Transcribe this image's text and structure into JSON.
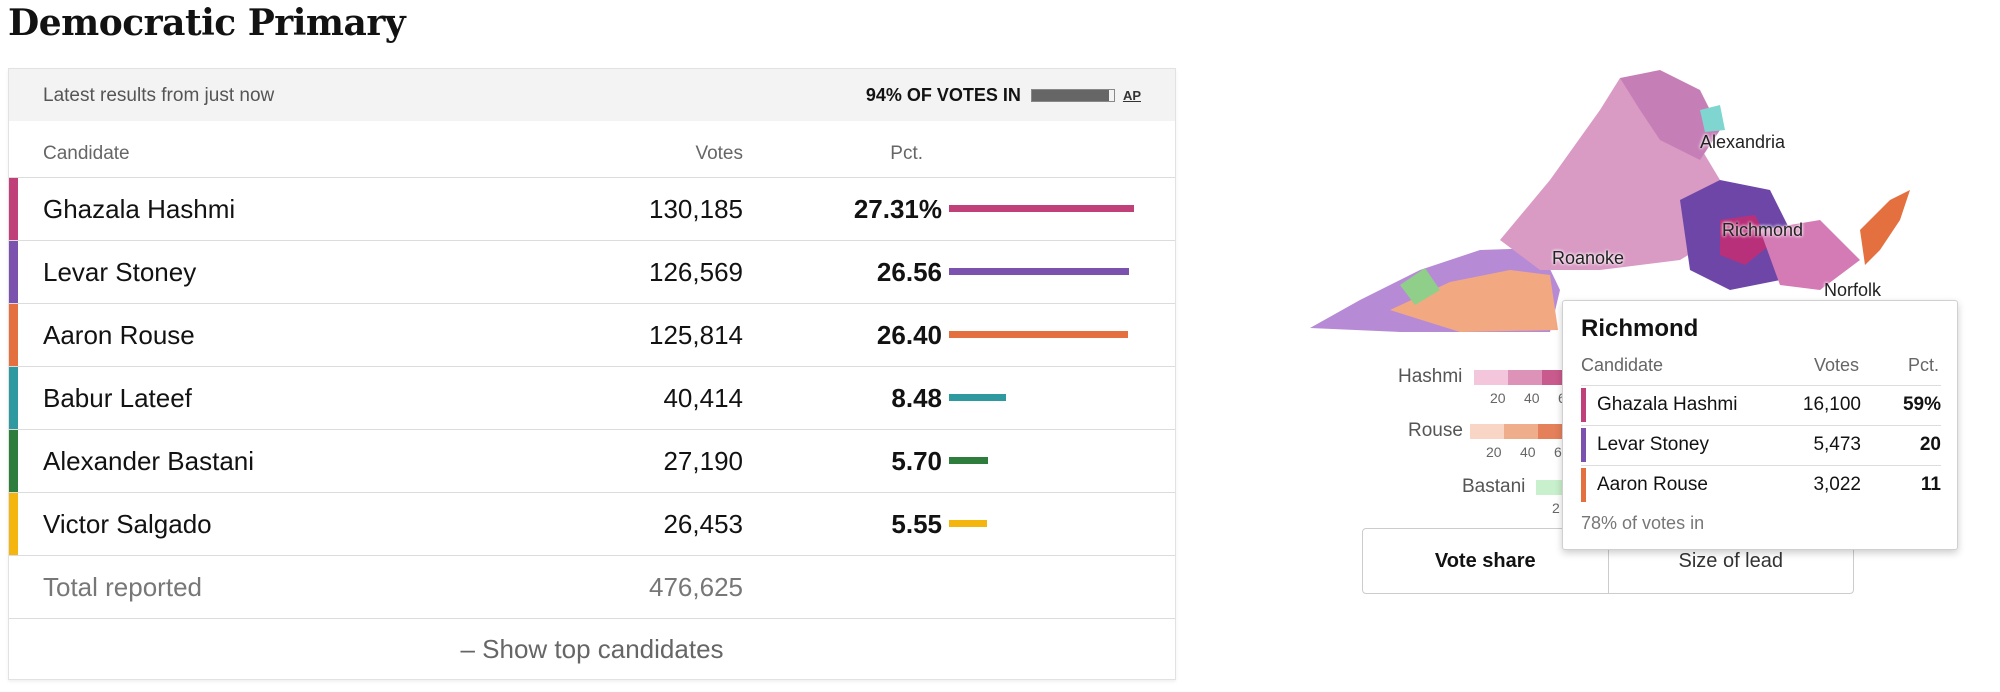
{
  "title": "Democratic Primary",
  "header": {
    "latest": "Latest results from just now",
    "votes_in": "94% OF VOTES IN",
    "progress": 0.94,
    "source": "AP"
  },
  "columns": {
    "candidate": "Candidate",
    "votes": "Votes",
    "pct": "Pct."
  },
  "candidates": [
    {
      "name": "Ghazala Hashmi",
      "votes": "130,185",
      "pct": "27.31%",
      "share": 27.31,
      "color": "#c0417a"
    },
    {
      "name": "Levar Stoney",
      "votes": "126,569",
      "pct": "26.56",
      "share": 26.56,
      "color": "#7b52ae"
    },
    {
      "name": "Aaron Rouse",
      "votes": "125,814",
      "pct": "26.40",
      "share": 26.4,
      "color": "#e4703f"
    },
    {
      "name": "Babur Lateef",
      "votes": "40,414",
      "pct": "8.48",
      "share": 8.48,
      "color": "#2e9aa0"
    },
    {
      "name": "Alexander Bastani",
      "votes": "27,190",
      "pct": "5.70",
      "share": 5.7,
      "color": "#2f7d3c"
    },
    {
      "name": "Victor Salgado",
      "votes": "26,453",
      "pct": "5.55",
      "share": 5.55,
      "color": "#f5b50f"
    }
  ],
  "total": {
    "label": "Total reported",
    "votes": "476,625"
  },
  "show_top": "– Show top candidates",
  "map": {
    "labels": [
      "Alexandria",
      "Richmond",
      "Roanoke",
      "Norfolk"
    ],
    "legend": [
      {
        "name": "Hashmi",
        "ticks": [
          "20",
          "40",
          "6"
        ],
        "colors": [
          "#f3c6dc",
          "#dd93b7",
          "#c95a8d",
          "#b03070"
        ]
      },
      {
        "name": "Rouse",
        "ticks": [
          "20",
          "40",
          "6"
        ],
        "colors": [
          "#f8d5c4",
          "#f0ad8c",
          "#e4805a",
          "#d65a2e"
        ]
      },
      {
        "name": "Bastani",
        "ticks": [
          "2"
        ],
        "colors": [
          "#c8f0cc",
          "#9bd9a2"
        ]
      }
    ]
  },
  "toggle": {
    "vote_share": "Vote share",
    "size_of_lead": "Size of lead"
  },
  "tooltip": {
    "title": "Richmond",
    "col_candidate": "Candidate",
    "col_votes": "Votes",
    "col_pct": "Pct.",
    "rows": [
      {
        "name": "Ghazala Hashmi",
        "votes": "16,100",
        "pct": "59%",
        "color": "#c0417a"
      },
      {
        "name": "Levar Stoney",
        "votes": "5,473",
        "pct": "20",
        "color": "#7b52ae"
      },
      {
        "name": "Aaron Rouse",
        "votes": "3,022",
        "pct": "11",
        "color": "#e4703f"
      }
    ],
    "footer": "78% of votes in"
  }
}
